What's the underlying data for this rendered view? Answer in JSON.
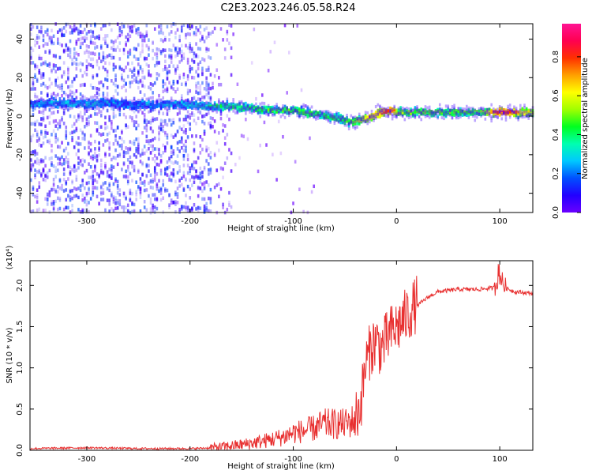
{
  "title": "C2E3.2023.246.05.58.R24",
  "chart_data": [
    {
      "type": "heatmap",
      "title": "C2E3.2023.246.05.58.R24",
      "xlabel": "Height of straight line (km)",
      "ylabel": "Frequency (Hz)",
      "xlim": [
        -355,
        132
      ],
      "ylim": [
        -50,
        48
      ],
      "x_ticks": [
        -300,
        -200,
        -100,
        0,
        100
      ],
      "y_ticks": [
        -40,
        -20,
        0,
        20,
        40
      ],
      "grid": false,
      "colorbar": {
        "label": "Normalized spectral amplitude",
        "range": [
          0,
          0.97
        ],
        "ticks": [
          0.0,
          0.2,
          0.4,
          0.6,
          0.8
        ],
        "colormap": [
          "#6a00ff",
          "#2200ff",
          "#0050ff",
          "#00c8ff",
          "#00ffb0",
          "#00ff20",
          "#a0ff00",
          "#ffff00",
          "#ffa000",
          "#ff3000",
          "#ff0050",
          "#ff1493"
        ]
      },
      "ridge": {
        "x": [
          -355,
          -330,
          -300,
          -280,
          -265,
          -200,
          -180,
          -160,
          -140,
          -120,
          -100,
          -80,
          -60,
          -45,
          -35,
          -25,
          -15,
          -5,
          0,
          20,
          50,
          80,
          100,
          132
        ],
        "y": [
          6,
          7,
          6,
          7,
          6,
          6,
          5,
          5,
          4,
          3,
          3,
          1,
          -1,
          -3,
          -2,
          0,
          2,
          3,
          2,
          2,
          2,
          2,
          2,
          2
        ],
        "amplitude": [
          0.25,
          0.3,
          0.3,
          0.28,
          0.25,
          0.3,
          0.4,
          0.45,
          0.45,
          0.48,
          0.5,
          0.48,
          0.45,
          0.5,
          0.6,
          0.7,
          0.8,
          0.85,
          0.55,
          0.5,
          0.5,
          0.5,
          0.9,
          0.6
        ]
      }
    },
    {
      "type": "line",
      "xlabel": "Height of straight line (km)",
      "ylabel": "SNR (10 * v/v)",
      "scale_label": "(x10⁴)",
      "xlim": [
        -355,
        132
      ],
      "ylim": [
        0,
        2.3
      ],
      "x_ticks": [
        -300,
        -200,
        -100,
        0,
        100
      ],
      "y_ticks": [
        0.0,
        0.5,
        1.0,
        1.5,
        2.0
      ],
      "y_tick_labels": [
        "0.0",
        "0.5",
        "1.0",
        "1.5",
        "2.0"
      ],
      "series": [
        {
          "color": "#e83030",
          "x": [
            -355,
            -300,
            -250,
            -200,
            -175,
            -150,
            -130,
            -110,
            -100,
            -90,
            -80,
            -70,
            -60,
            -50,
            -40,
            -35,
            -30,
            -25,
            -20,
            -15,
            -10,
            -5,
            0,
            10,
            20,
            30,
            40,
            60,
            80,
            95,
            100,
            105,
            115,
            132
          ],
          "y": [
            0.02,
            0.03,
            0.02,
            0.02,
            0.03,
            0.06,
            0.1,
            0.15,
            0.2,
            0.22,
            0.25,
            0.3,
            0.3,
            0.3,
            0.35,
            0.5,
            1.0,
            1.2,
            1.3,
            1.2,
            1.3,
            1.4,
            1.45,
            1.6,
            1.75,
            1.85,
            1.92,
            1.95,
            1.95,
            1.97,
            2.1,
            1.97,
            1.92,
            1.9
          ]
        }
      ]
    }
  ]
}
